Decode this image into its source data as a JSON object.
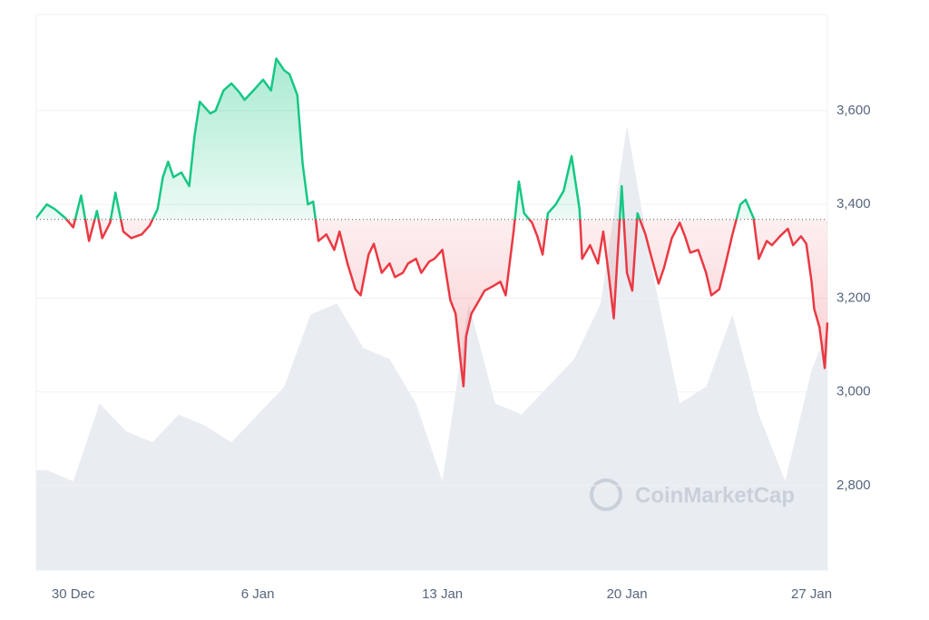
{
  "chart_data": {
    "type": "line",
    "watermark": "CoinMarketCap",
    "x": [
      -1.4,
      -1.0,
      -0.7,
      -0.3,
      0,
      0.3,
      0.6,
      0.9,
      1.1,
      1.4,
      1.6,
      1.9,
      2.2,
      2.6,
      2.9,
      3.2,
      3.4,
      3.6,
      3.8,
      4.1,
      4.4,
      4.6,
      4.8,
      5.2,
      5.4,
      5.7,
      6.0,
      6.3,
      6.5,
      6.9,
      7.2,
      7.5,
      7.7,
      8.0,
      8.2,
      8.5,
      8.7,
      8.9,
      9.1,
      9.3,
      9.6,
      9.9,
      10.1,
      10.4,
      10.7,
      10.9,
      11.2,
      11.4,
      11.7,
      12.0,
      12.2,
      12.5,
      12.7,
      13.0,
      13.2,
      13.5,
      13.7,
      14.0,
      14.3,
      14.5,
      14.7,
      14.8,
      14.9,
      15.1,
      15.4,
      15.6,
      15.9,
      16.2,
      16.4,
      16.7,
      16.9,
      17.1,
      17.4,
      17.6,
      17.8,
      18.0,
      18.3,
      18.6,
      18.9,
      19.2,
      19.3,
      19.6,
      19.9,
      20.1,
      20.3,
      20.5,
      20.8,
      21.0,
      21.2,
      21.4,
      21.7,
      21.9,
      22.2,
      22.4,
      22.7,
      23.0,
      23.2,
      23.4,
      23.7,
      24.0,
      24.2,
      24.5,
      24.7,
      25.0,
      25.3,
      25.5,
      25.8,
      26.0,
      26.3,
      26.5,
      26.8,
      27.1,
      27.3,
      27.6,
      27.8,
      28.0,
      28.1,
      28.3,
      28.5,
      28.6
    ],
    "series": [
      {
        "color_up": "#16c784",
        "color_down": "#ea3943",
        "values": [
          3371,
          3400,
          3390,
          3371,
          3351,
          3419,
          3322,
          3386,
          3328,
          3361,
          3425,
          3342,
          3328,
          3336,
          3355,
          3390,
          3458,
          3491,
          3458,
          3468,
          3439,
          3546,
          3619,
          3594,
          3600,
          3643,
          3658,
          3639,
          3623,
          3647,
          3666,
          3643,
          3711,
          3686,
          3678,
          3633,
          3487,
          3400,
          3406,
          3322,
          3336,
          3303,
          3342,
          3274,
          3219,
          3206,
          3293,
          3316,
          3254,
          3274,
          3245,
          3254,
          3274,
          3284,
          3254,
          3278,
          3284,
          3303,
          3196,
          3167,
          3060,
          3012,
          3118,
          3167,
          3196,
          3216,
          3225,
          3235,
          3206,
          3342,
          3449,
          3381,
          3361,
          3332,
          3293,
          3381,
          3400,
          3429,
          3503,
          3390,
          3284,
          3313,
          3274,
          3342,
          3254,
          3157,
          3439,
          3254,
          3216,
          3381,
          3336,
          3293,
          3231,
          3264,
          3328,
          3361,
          3332,
          3297,
          3303,
          3254,
          3206,
          3219,
          3264,
          3336,
          3400,
          3410,
          3371,
          3284,
          3322,
          3313,
          3332,
          3348,
          3313,
          3332,
          3316,
          3235,
          3177,
          3138,
          3051,
          3148
        ]
      },
      {
        "axis": "y2",
        "color": "#e9edf2",
        "x": [
          -1.4,
          -1,
          0,
          1,
          2,
          3,
          4,
          5,
          6,
          7,
          8,
          9,
          10,
          11,
          12,
          13,
          14,
          15,
          16,
          17,
          18,
          19,
          20,
          21,
          22,
          23,
          24,
          25,
          26,
          27,
          28,
          28.6
        ],
        "values": [
          18,
          18,
          16,
          30,
          25,
          23,
          28,
          26,
          23,
          28,
          33,
          46,
          48,
          40,
          38,
          30,
          16,
          48,
          30,
          28,
          33,
          38,
          48,
          80,
          53,
          30,
          33,
          46,
          28,
          16,
          36,
          43
        ]
      }
    ],
    "baseline": 3368,
    "xlim": [
      -1.4,
      28.6
    ],
    "xticks": [
      {
        "value": 0,
        "label": "30 Dec"
      },
      {
        "value": 7,
        "label": "6 Jan"
      },
      {
        "value": 14,
        "label": "13 Jan"
      },
      {
        "value": 21,
        "label": "20 Jan"
      },
      {
        "value": 28,
        "label": "27 Jan"
      }
    ],
    "ylim": [
      2620,
      3805
    ],
    "yticks": [
      {
        "value": 2800,
        "label": "2,800"
      },
      {
        "value": 3000,
        "label": "3,000"
      },
      {
        "value": 3200,
        "label": "3,200"
      },
      {
        "value": 3400,
        "label": "3,400"
      },
      {
        "value": 3600,
        "label": "3,600"
      }
    ],
    "y2lim": [
      0,
      100
    ],
    "grid": true
  }
}
